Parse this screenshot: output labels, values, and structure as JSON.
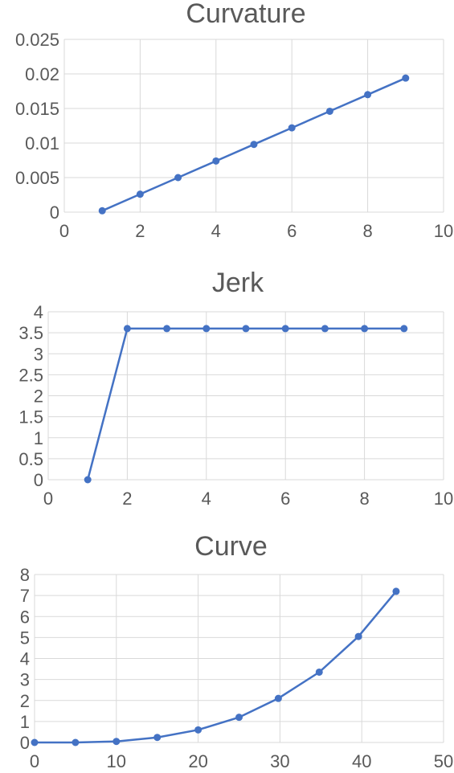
{
  "chart_data": [
    {
      "type": "scatter",
      "title": "Curvature",
      "xlabel": "",
      "ylabel": "",
      "xlim": [
        0,
        10
      ],
      "ylim": [
        0,
        0.025
      ],
      "xticks": [
        "0",
        "2",
        "4",
        "6",
        "8",
        "10"
      ],
      "yticks": [
        "0",
        "0.005",
        "0.01",
        "0.015",
        "0.02",
        "0.025"
      ],
      "grid": true,
      "series": [
        {
          "x": [
            1,
            2,
            3,
            4,
            5,
            6,
            7,
            8,
            9
          ],
          "y": [
            0.0002,
            0.0026,
            0.005,
            0.0074,
            0.0098,
            0.0122,
            0.0146,
            0.017,
            0.0194
          ]
        }
      ]
    },
    {
      "type": "scatter",
      "title": "Jerk",
      "xlabel": "",
      "ylabel": "",
      "xlim": [
        0,
        10
      ],
      "ylim": [
        0,
        4
      ],
      "xticks": [
        "0",
        "2",
        "4",
        "6",
        "8",
        "10"
      ],
      "yticks": [
        "0",
        "0.5",
        "1",
        "1.5",
        "2",
        "2.5",
        "3",
        "3.5",
        "4"
      ],
      "grid": true,
      "series": [
        {
          "x": [
            1,
            2,
            3,
            4,
            5,
            6,
            7,
            8,
            9
          ],
          "y": [
            0,
            3.6,
            3.6,
            3.6,
            3.6,
            3.6,
            3.6,
            3.6,
            3.6
          ]
        }
      ]
    },
    {
      "type": "scatter",
      "title": "Curve",
      "xlabel": "",
      "ylabel": "",
      "xlim": [
        0,
        50
      ],
      "ylim": [
        0,
        8
      ],
      "xticks": [
        "0",
        "10",
        "20",
        "30",
        "40",
        "50"
      ],
      "yticks": [
        "0",
        "1",
        "2",
        "3",
        "4",
        "5",
        "6",
        "7",
        "8"
      ],
      "grid": true,
      "series": [
        {
          "x": [
            0,
            5,
            10,
            15,
            20,
            25,
            29.8,
            34.8,
            39.6,
            44.2
          ],
          "y": [
            0,
            0,
            0.05,
            0.24,
            0.6,
            1.2,
            2.1,
            3.35,
            5.05,
            7.2
          ]
        }
      ]
    }
  ]
}
